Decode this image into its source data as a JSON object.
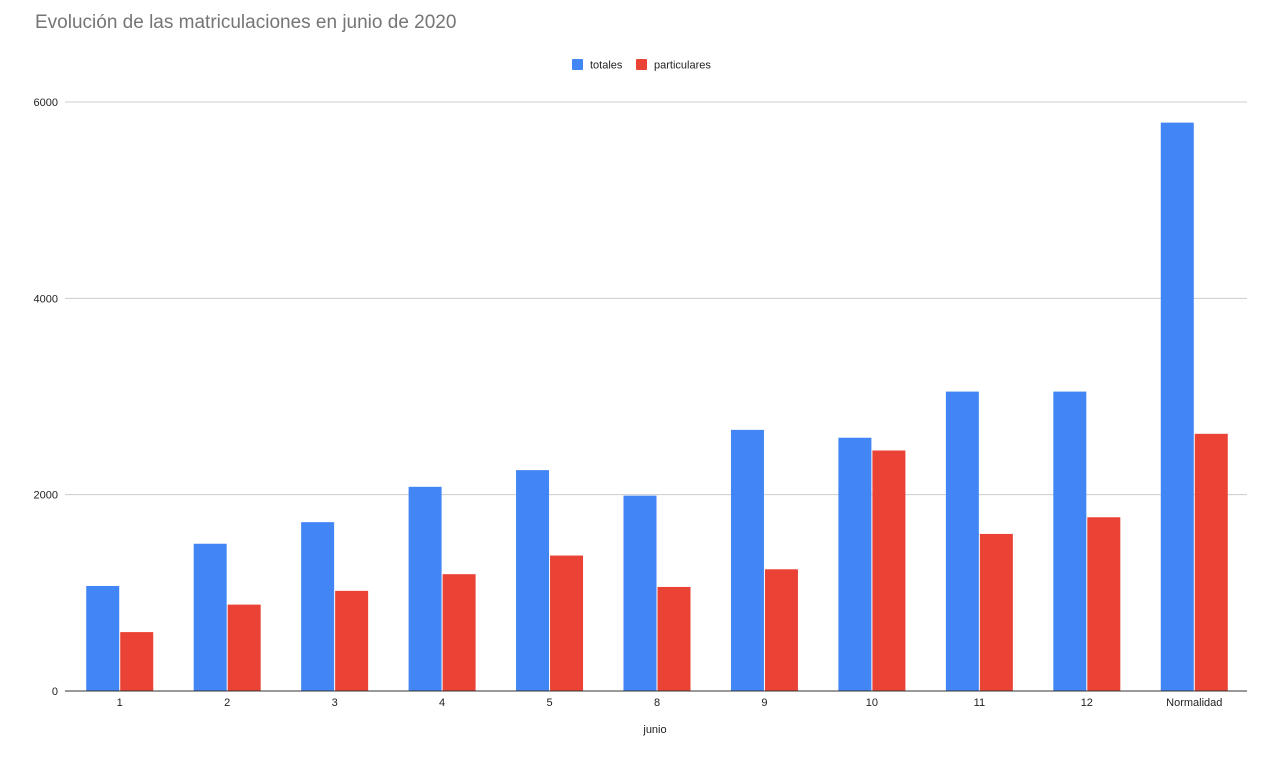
{
  "chart_data": {
    "type": "bar",
    "title": "Evolución de las matriculaciones en junio de 2020",
    "xlabel": "junio",
    "ylabel": "",
    "ylim": [
      0,
      6000
    ],
    "yticks": [
      0,
      2000,
      4000,
      6000
    ],
    "grid": true,
    "legend_position": "top-center",
    "categories": [
      "1",
      "2",
      "3",
      "4",
      "5",
      "8",
      "9",
      "10",
      "11",
      "12",
      "Normalidad"
    ],
    "series": [
      {
        "name": "totales",
        "color": "#4285f4",
        "values": [
          1070,
          1500,
          1720,
          2080,
          2250,
          1990,
          2660,
          2580,
          3050,
          3050,
          5790
        ]
      },
      {
        "name": "particulares",
        "color": "#ea4335",
        "values": [
          600,
          880,
          1020,
          1190,
          1380,
          1060,
          1240,
          2450,
          1600,
          1770,
          2620
        ]
      }
    ]
  }
}
